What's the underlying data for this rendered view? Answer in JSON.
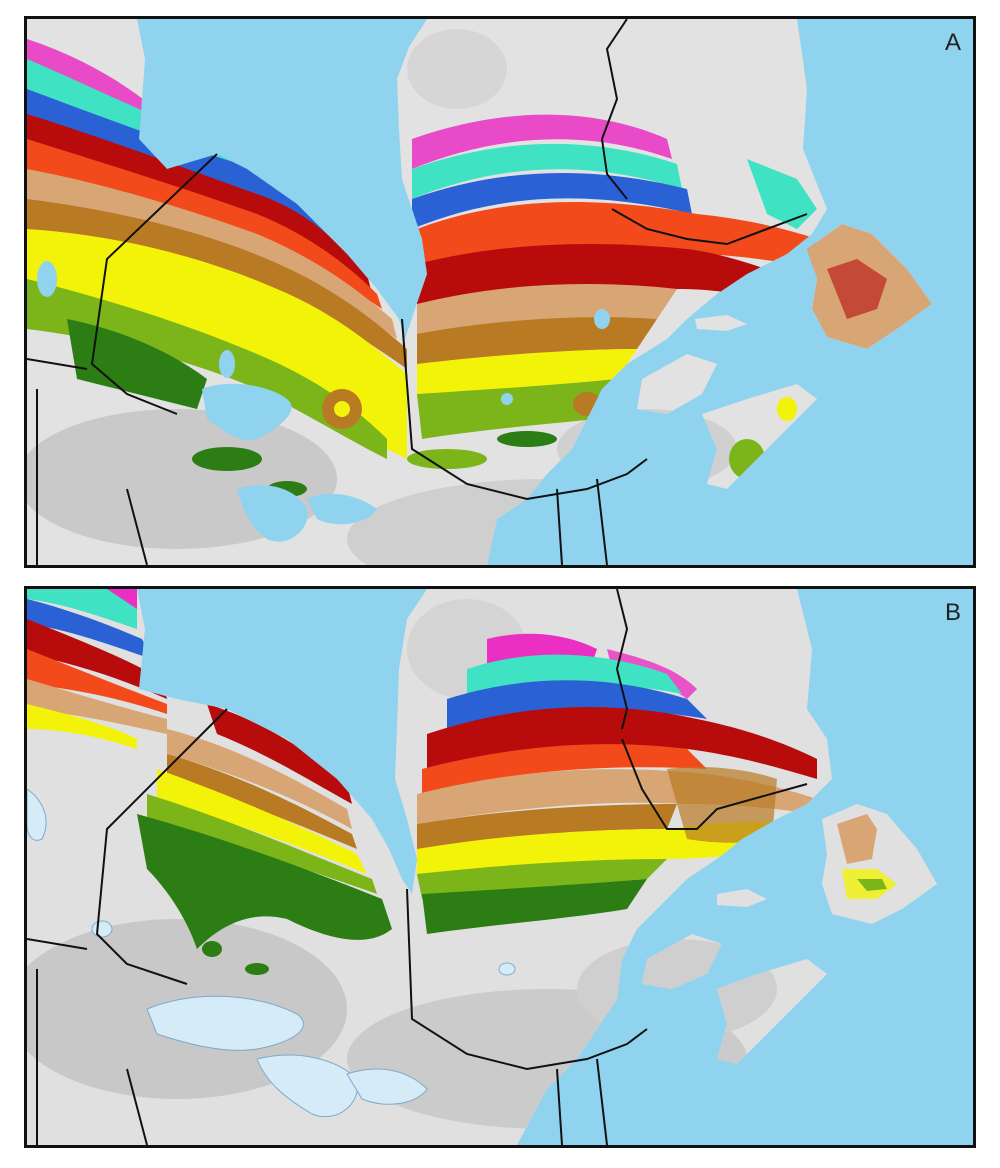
{
  "panels": [
    {
      "letter": "A"
    },
    {
      "letter": "B"
    }
  ],
  "colors": {
    "water": "#8fd3ef",
    "lake": "#d5ecf8",
    "land_light": "#e6e6e6",
    "land_dark": "#c8c8c8",
    "magenta": "#ea2fc2",
    "turquoise": "#3fe3c3",
    "blue": "#2a62d6",
    "dark_red": "#b80c0c",
    "orange_red": "#f24a1a",
    "tan": "#d8a575",
    "brown": "#b87a22",
    "yellow": "#f3f30a",
    "light_green": "#7cb51a",
    "dark_green": "#2b7d14",
    "border": "#111111"
  }
}
